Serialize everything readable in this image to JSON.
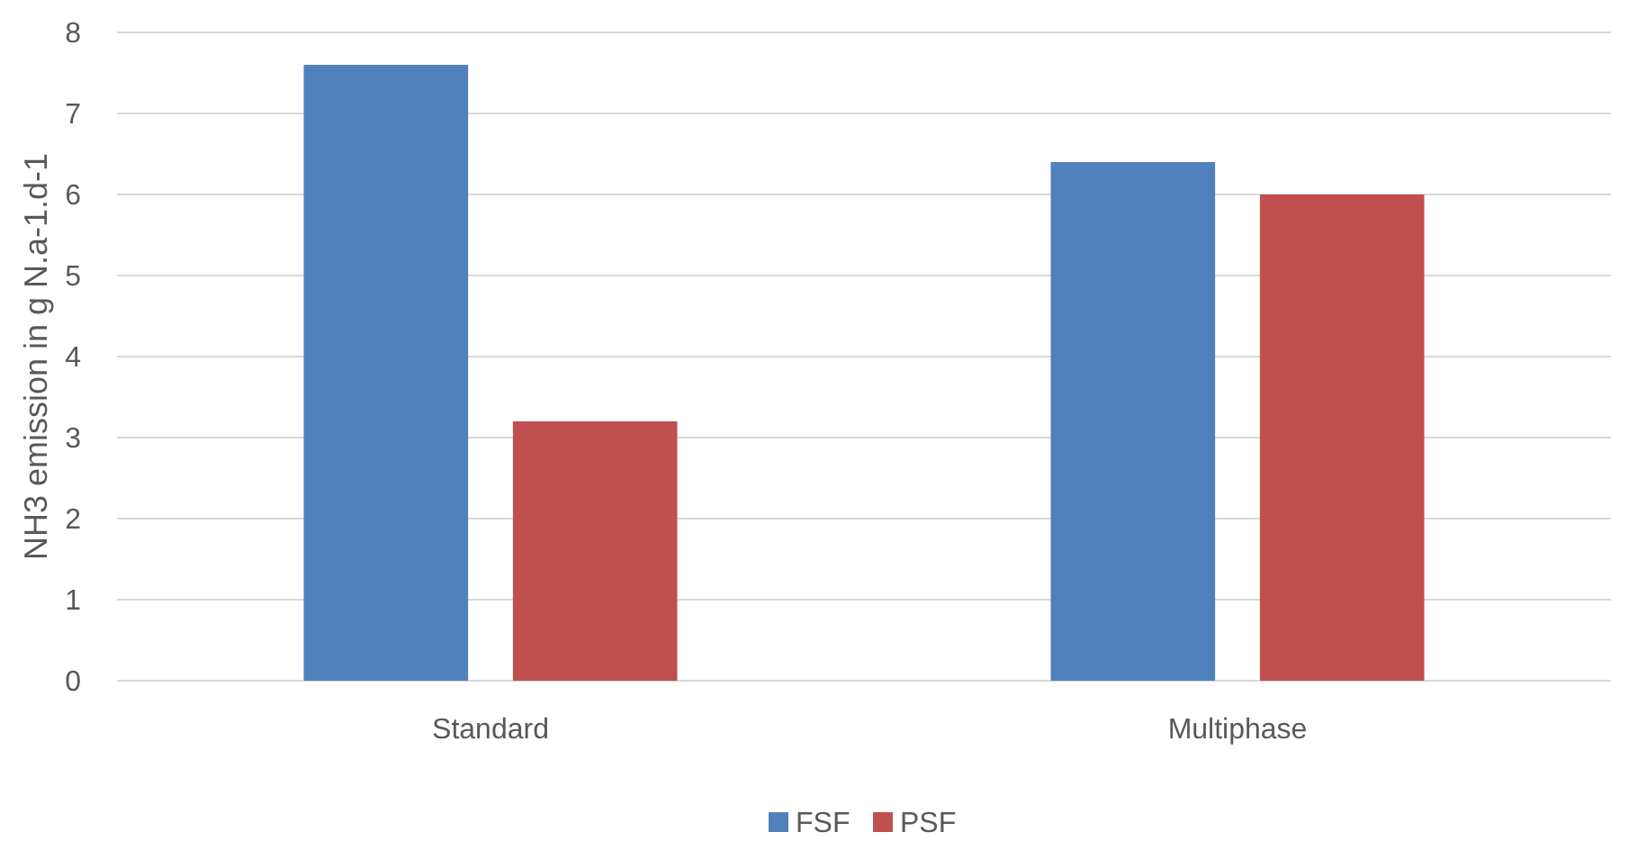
{
  "chart_data": {
    "type": "bar",
    "ylabel": "NH3 emission in g N.a-1.d-1",
    "categories": [
      "Standard",
      "Multiphase"
    ],
    "series": [
      {
        "name": "FSF",
        "color": "#4f81bd",
        "values": [
          7.6,
          6.4
        ]
      },
      {
        "name": "PSF",
        "color": "#c0504d",
        "values": [
          3.2,
          6.0
        ]
      }
    ],
    "ylim": [
      0,
      8
    ],
    "yticks": [
      0,
      1,
      2,
      3,
      4,
      5,
      6,
      7,
      8
    ],
    "grid": "y",
    "legend": "bottom"
  }
}
